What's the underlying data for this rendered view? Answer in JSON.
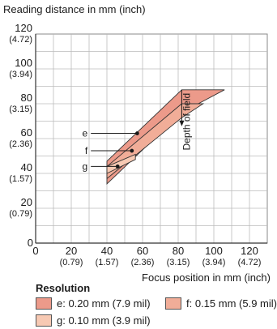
{
  "chart_data": {
    "type": "area",
    "ylabel": "Reading distance in mm (inch)",
    "xlabel": "Focus position in mm (inch)",
    "xlim": [
      0,
      130
    ],
    "ylim": [
      0,
      120
    ],
    "x_ticks": [
      {
        "value": 0,
        "label": "0",
        "sub": ""
      },
      {
        "value": 20,
        "label": "20",
        "sub": "(0.79)"
      },
      {
        "value": 40,
        "label": "40",
        "sub": "(1.57)"
      },
      {
        "value": 60,
        "label": "60",
        "sub": "(2.36)"
      },
      {
        "value": 80,
        "label": "80",
        "sub": "(3.15)"
      },
      {
        "value": 100,
        "label": "100",
        "sub": "(3.94)"
      },
      {
        "value": 120,
        "label": "120",
        "sub": "(4.72)"
      }
    ],
    "y_ticks": [
      {
        "value": 0,
        "label": "0",
        "sub": ""
      },
      {
        "value": 20,
        "label": "20",
        "sub": "(0.79)"
      },
      {
        "value": 40,
        "label": "40",
        "sub": "(1.57)"
      },
      {
        "value": 60,
        "label": "60",
        "sub": "(2.36)"
      },
      {
        "value": 80,
        "label": "80",
        "sub": "(3.15)"
      },
      {
        "value": 100,
        "label": "100",
        "sub": "(3.94)"
      },
      {
        "value": 120,
        "label": "120",
        "sub": "(4.72)"
      }
    ],
    "grid": true,
    "series": [
      {
        "name": "e: 0.20 mm (7.9 mil)",
        "key": "e",
        "color": "#ec9a8a",
        "polygon": [
          [
            40,
            34
          ],
          [
            82,
            75
          ],
          [
            106,
            88
          ],
          [
            82,
            88
          ],
          [
            40,
            47
          ]
        ]
      },
      {
        "name": "f: 0.15 mm (5.9 mil)",
        "key": "f",
        "color": "#f1ad98",
        "polygon": [
          [
            40,
            37
          ],
          [
            82,
            72
          ],
          [
            94,
            80
          ],
          [
            82,
            80
          ],
          [
            40,
            44
          ]
        ]
      },
      {
        "name": "g: 0.10 mm (3.9 mil)",
        "key": "g",
        "color": "#f7c9b3",
        "polygon": [
          [
            40,
            40
          ],
          [
            56,
            48
          ],
          [
            56,
            51
          ],
          [
            40,
            44
          ]
        ]
      }
    ],
    "markers": [
      {
        "label": "e",
        "x": 57,
        "y": 63,
        "label_x": 31
      },
      {
        "label": "f",
        "x": 54,
        "y": 53,
        "label_x": 31
      },
      {
        "label": "g",
        "x": 46,
        "y": 44,
        "label_x": 31
      }
    ],
    "annotations": [
      {
        "text": "Depth of field",
        "x": 82,
        "y_from": 68,
        "y_to": 88
      }
    ],
    "legend": {
      "title": "Resolution",
      "placement": "bottom"
    }
  }
}
